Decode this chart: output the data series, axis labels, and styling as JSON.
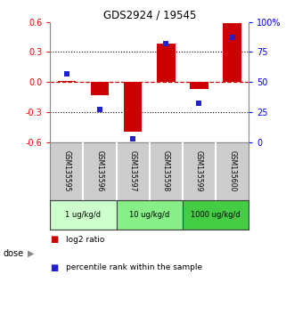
{
  "title": "GDS2924 / 19545",
  "samples": [
    "GSM135595",
    "GSM135596",
    "GSM135597",
    "GSM135598",
    "GSM135599",
    "GSM135600"
  ],
  "log2_ratio": [
    0.01,
    -0.13,
    -0.5,
    0.38,
    -0.07,
    0.59
  ],
  "percentile_rank": [
    57,
    27,
    3,
    82,
    32,
    87
  ],
  "ylim_left": [
    -0.6,
    0.6
  ],
  "ylim_right": [
    0,
    100
  ],
  "yticks_left": [
    -0.6,
    -0.3,
    0.0,
    0.3,
    0.6
  ],
  "yticks_right": [
    0,
    25,
    50,
    75,
    100
  ],
  "ytick_labels_right": [
    "0",
    "25",
    "50",
    "75",
    "100%"
  ],
  "hlines": [
    0.3,
    0.0,
    -0.3
  ],
  "bar_color": "#cc0000",
  "dot_color": "#2222cc",
  "zero_line_color": "#cc0000",
  "grid_line_color": "#000000",
  "dose_groups": [
    {
      "label": "1 ug/kg/d",
      "indices": [
        0,
        1
      ],
      "color": "#ccffcc"
    },
    {
      "label": "10 ug/kg/d",
      "indices": [
        2,
        3
      ],
      "color": "#88ee88"
    },
    {
      "label": "1000 ug/kg/d",
      "indices": [
        4,
        5
      ],
      "color": "#44cc44"
    }
  ],
  "legend_bar_color": "#cc0000",
  "legend_dot_color": "#2222cc",
  "legend_bar_label": "log2 ratio",
  "legend_dot_label": "percentile rank within the sample",
  "sample_box_color": "#cccccc",
  "background_color": "#ffffff",
  "dose_label": "dose"
}
